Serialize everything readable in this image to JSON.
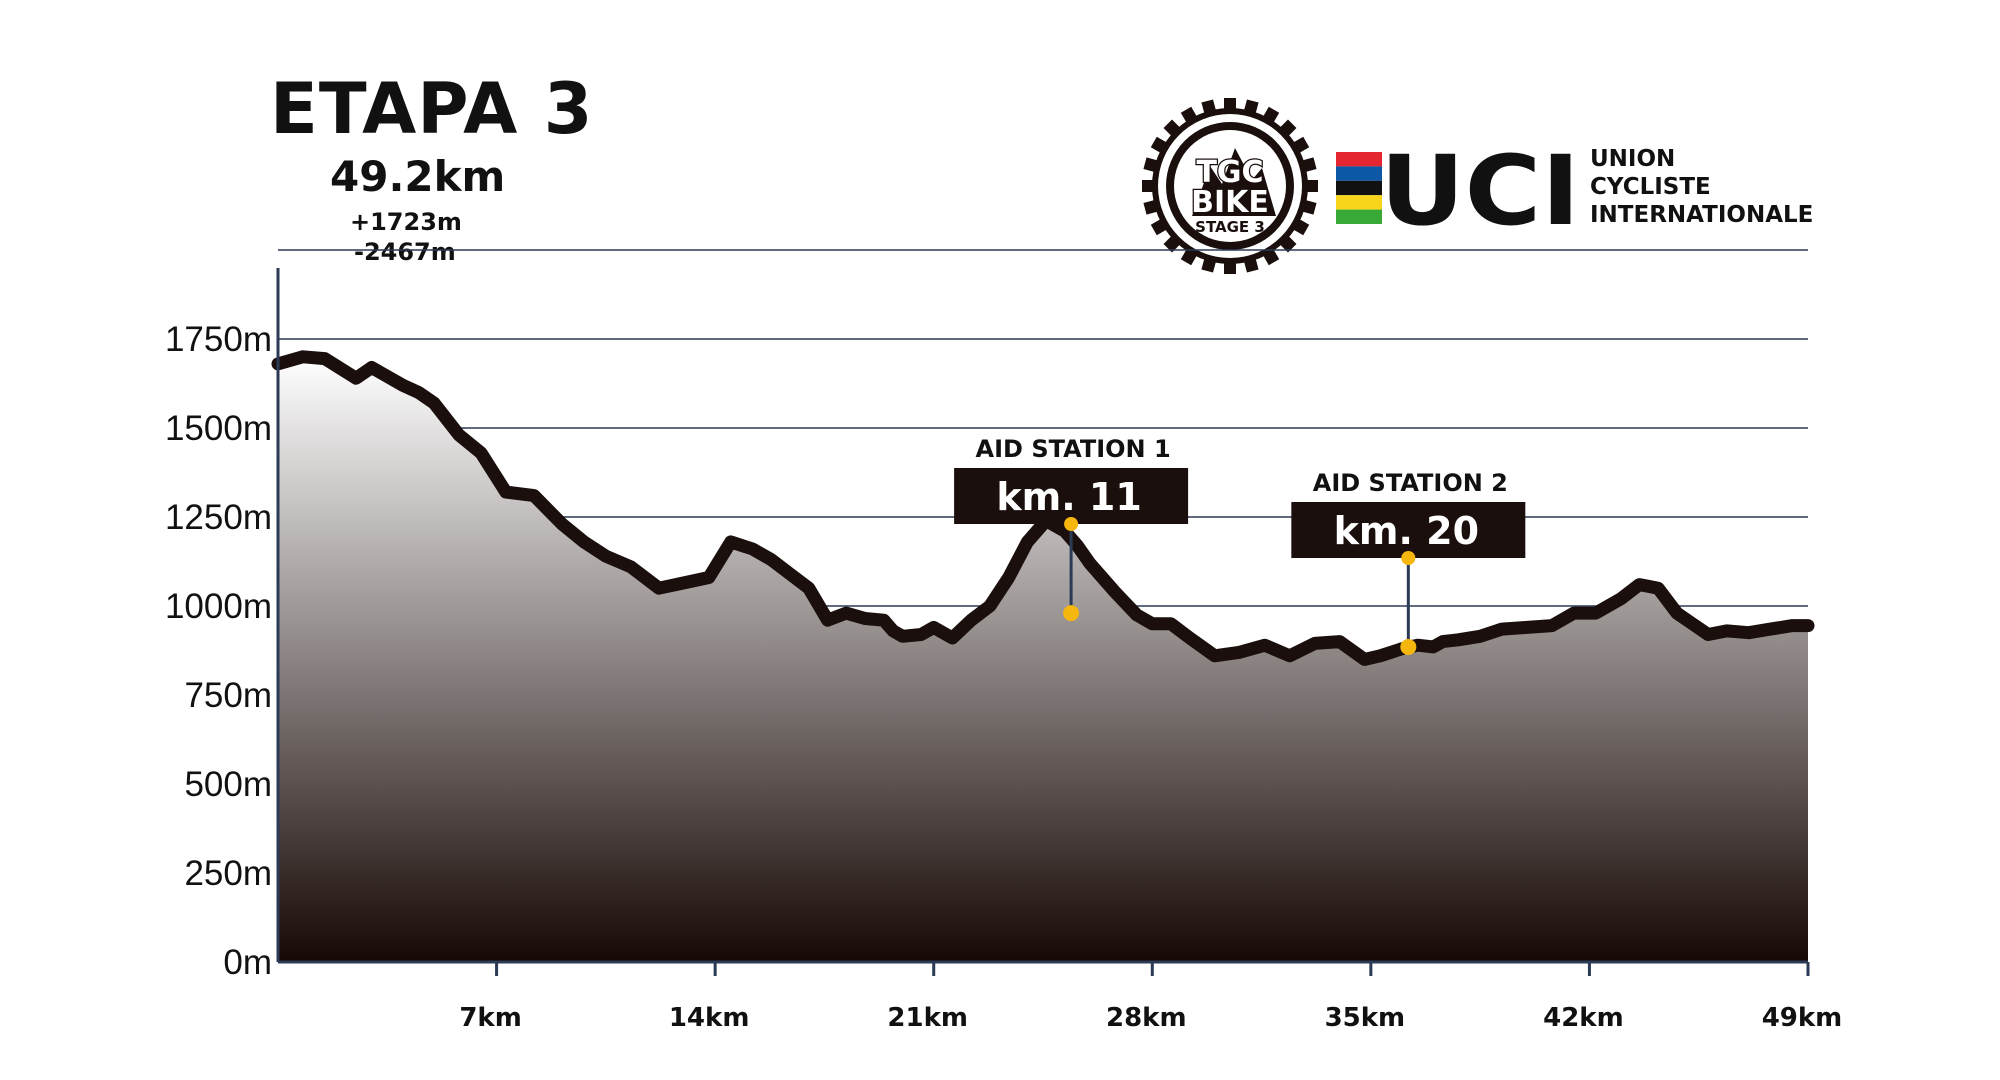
{
  "header": {
    "title": "ETAPA 3",
    "distance": "49.2km",
    "gain": "+1723m",
    "loss": "-2467m"
  },
  "logos": {
    "tgc": {
      "line1": "TGC",
      "line2": "BIKE",
      "line3": "STAGE 3"
    },
    "uci": {
      "mark": "UCI",
      "text": [
        "UNION",
        "CYCLISTE",
        "INTERNATIONALE"
      ]
    }
  },
  "colors": {
    "profile_line": "#1a0f0c",
    "fill_top": "#ffffff",
    "fill_bottom": "#160805",
    "grid": "#2b3a55",
    "marker": "#f5b70d",
    "uci_bands": [
      "#e3262f",
      "#0d57a7",
      "#111111",
      "#f8d51a",
      "#38a935"
    ]
  },
  "chart_data": {
    "type": "area",
    "x": [
      0,
      0.8,
      1.5,
      2.5,
      3,
      4,
      4.5,
      5,
      5.8,
      6.5,
      7.3,
      8.2,
      9.1,
      9.8,
      10.5,
      11.3,
      12.2,
      13,
      13.8,
      14.5,
      15.2,
      15.8,
      16.4,
      17,
      17.6,
      18.2,
      18.8,
      19.4,
      19.7,
      20,
      20.6,
      21,
      21.6,
      22.2,
      22.8,
      23.4,
      24,
      24.6,
      25.2,
      25.6,
      26,
      26.8,
      27.5,
      28,
      28.6,
      29.2,
      30,
      30.8,
      31.6,
      32.4,
      33.2,
      34,
      34.8,
      35.3,
      36,
      36.5,
      37,
      37.3,
      37.8,
      38.5,
      39.2,
      40,
      40.8,
      41.5,
      42.2,
      43,
      43.6,
      44.2,
      44.8,
      45.3,
      45.8,
      46.4,
      47.1,
      47.8,
      48.5,
      49
    ],
    "y": [
      1680,
      1700,
      1695,
      1640,
      1670,
      1620,
      1600,
      1570,
      1480,
      1430,
      1320,
      1310,
      1230,
      1180,
      1140,
      1110,
      1050,
      1065,
      1080,
      1180,
      1160,
      1130,
      1090,
      1050,
      960,
      980,
      965,
      960,
      930,
      915,
      920,
      940,
      910,
      960,
      1000,
      1080,
      1180,
      1240,
      1210,
      1170,
      1120,
      1040,
      975,
      950,
      950,
      910,
      860,
      870,
      890,
      860,
      895,
      900,
      850,
      860,
      880,
      890,
      885,
      900,
      905,
      915,
      935,
      940,
      945,
      980,
      980,
      1020,
      1060,
      1050,
      980,
      950,
      920,
      930,
      925,
      935,
      945,
      945
    ],
    "x_ticks": [
      "7km",
      "14km",
      "21km",
      "28km",
      "35km",
      "42km",
      "49km"
    ],
    "x_tick_values": [
      7,
      14,
      21,
      28,
      35,
      42,
      49
    ],
    "y_ticks": [
      "0m",
      "250m",
      "500m",
      "750m",
      "1000m",
      "1250m",
      "1500m",
      "1750m"
    ],
    "y_tick_values": [
      0,
      250,
      500,
      750,
      1000,
      1250,
      1500,
      1750
    ],
    "ylim": [
      0,
      2000
    ],
    "xlim": [
      0,
      49
    ],
    "grid": "horizontal",
    "annotations": [
      {
        "title": "AID STATION 1",
        "label": "km. 11",
        "x": 25.4,
        "y": 980
      },
      {
        "title": "AID STATION 2",
        "label": "km. 20",
        "x": 36.2,
        "y": 885
      }
    ]
  }
}
